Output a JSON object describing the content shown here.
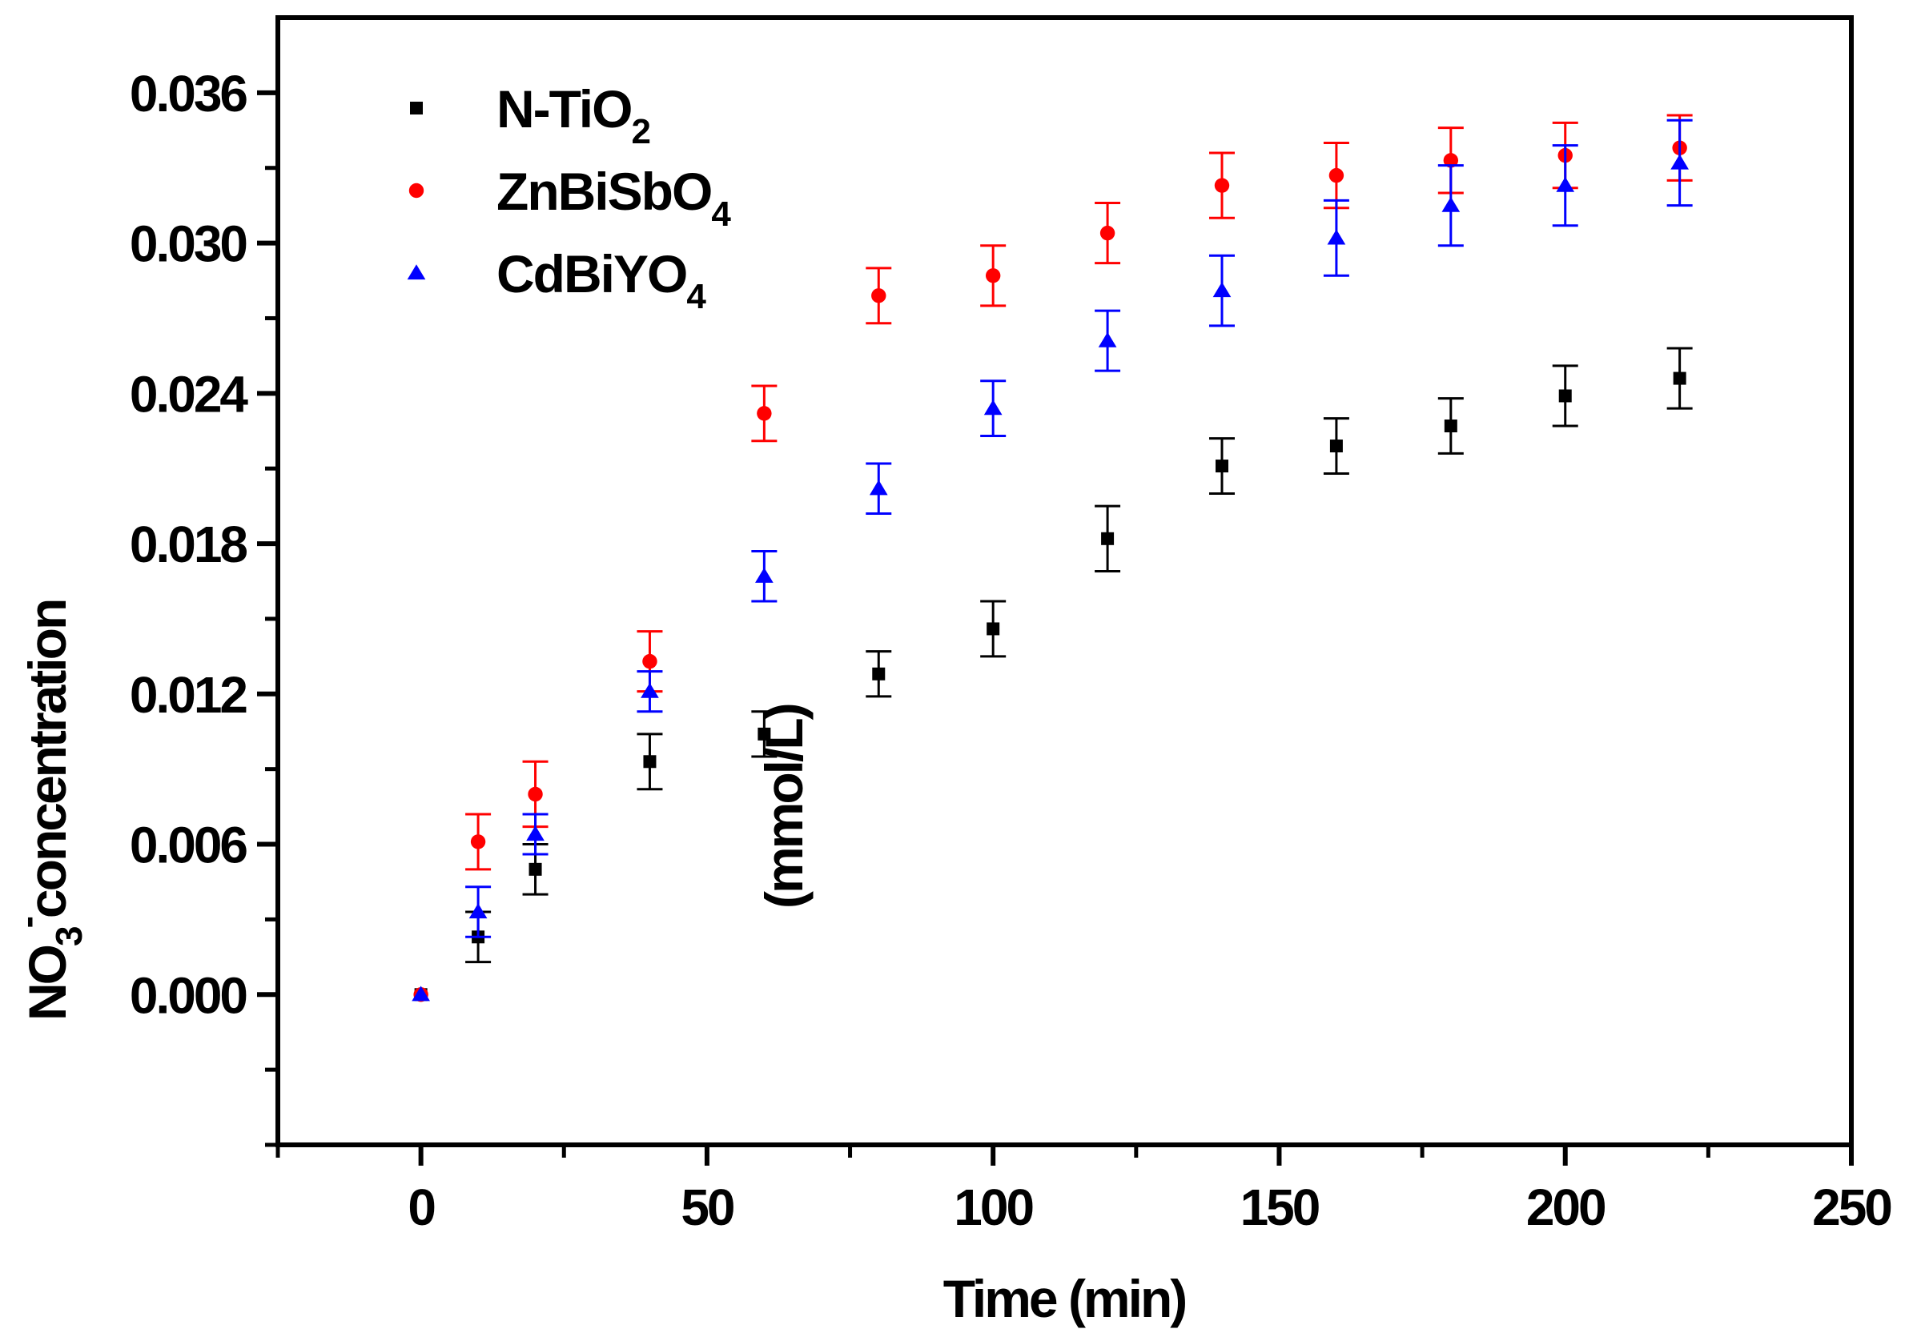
{
  "chart_data": {
    "type": "scatter",
    "title": "",
    "xlabel": "Time (min)",
    "ylabel": {
      "main": "NO",
      "sub": "3",
      "sup": "-",
      "rest": "concentration",
      "units": "(mmol/L)"
    },
    "xlim": [
      -25,
      250
    ],
    "ylim": [
      -0.006,
      0.039
    ],
    "x_ticks": [
      0,
      50,
      100,
      150,
      200,
      250
    ],
    "x_tick_labels": [
      "0",
      "50",
      "100",
      "150",
      "200",
      "250"
    ],
    "y_ticks": [
      0.0,
      0.006,
      0.012,
      0.018,
      0.024,
      0.03,
      0.036
    ],
    "y_tick_labels": [
      "0.000",
      "0.006",
      "0.012",
      "0.018",
      "0.024",
      "0.030",
      "0.036"
    ],
    "grid": false,
    "legend_position": "top-left",
    "series": [
      {
        "name": "N-TiO",
        "name_sub": "2",
        "marker": "square",
        "color": "#000000",
        "x": [
          0,
          10,
          20,
          40,
          60,
          80,
          100,
          120,
          140,
          160,
          180,
          200,
          220
        ],
        "y": [
          0.0,
          0.0023,
          0.005,
          0.0093,
          0.0104,
          0.0128,
          0.0146,
          0.0182,
          0.0211,
          0.0219,
          0.0227,
          0.0239,
          0.0246
        ],
        "err": [
          0.0,
          0.001,
          0.001,
          0.0011,
          0.0009,
          0.0009,
          0.0011,
          0.0013,
          0.0011,
          0.0011,
          0.0011,
          0.0012,
          0.0012
        ]
      },
      {
        "name": "ZnBiSbO",
        "name_sub": "4",
        "marker": "circle",
        "color": "#ff0000",
        "x": [
          0,
          10,
          20,
          40,
          60,
          80,
          100,
          120,
          140,
          160,
          180,
          200,
          220
        ],
        "y": [
          0.0,
          0.0061,
          0.008,
          0.0133,
          0.0232,
          0.0279,
          0.0287,
          0.0304,
          0.0323,
          0.0327,
          0.0333,
          0.0335,
          0.0338
        ],
        "err": [
          0.0,
          0.0011,
          0.0013,
          0.0012,
          0.0011,
          0.0011,
          0.0012,
          0.0012,
          0.0013,
          0.0013,
          0.0013,
          0.0013,
          0.0013
        ]
      },
      {
        "name": "CdBiYO",
        "name_sub": "4",
        "marker": "triangle",
        "color": "#0000ff",
        "x": [
          0,
          10,
          20,
          40,
          60,
          80,
          100,
          120,
          140,
          160,
          180,
          200,
          220
        ],
        "y": [
          0.0,
          0.0033,
          0.0064,
          0.0121,
          0.0167,
          0.0202,
          0.0234,
          0.0261,
          0.0281,
          0.0302,
          0.0315,
          0.0323,
          0.0332
        ],
        "err": [
          0.0,
          0.001,
          0.0008,
          0.0008,
          0.001,
          0.001,
          0.0011,
          0.0012,
          0.0014,
          0.0015,
          0.0016,
          0.0016,
          0.0017
        ]
      }
    ]
  }
}
